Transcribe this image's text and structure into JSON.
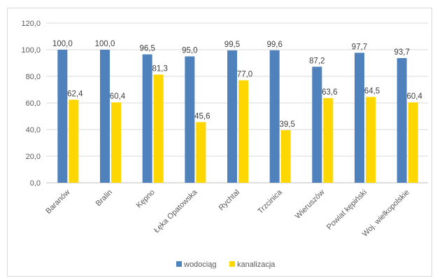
{
  "chart_data": {
    "type": "bar",
    "categories": [
      "Baranów",
      "Bralin",
      "Kępno",
      "Łęka Opatowska",
      "Rychtal",
      "Trzcinica",
      "Wieruszów",
      "Powiat kępiński",
      "Woj. wielkopolskie"
    ],
    "series": [
      {
        "name": "wodociąg",
        "color": "#4f81bd",
        "values": [
          100.0,
          100.0,
          96.5,
          95.0,
          99.5,
          99.6,
          87.2,
          97.7,
          93.7
        ],
        "labels": [
          "100,0",
          "100,0",
          "96,5",
          "95,0",
          "99,5",
          "99,6",
          "87,2",
          "97,7",
          "93,7"
        ]
      },
      {
        "name": "kanalizacja",
        "color": "#ffd700",
        "values": [
          62.4,
          60.4,
          81.3,
          45.6,
          77.0,
          39.5,
          63.6,
          64.5,
          60.4
        ],
        "labels": [
          "62,4",
          "60,4",
          "81,3",
          "45,6",
          "77,0",
          "39,5",
          "63,6",
          "64,5",
          "60,4"
        ]
      }
    ],
    "ylim": [
      0,
      120
    ],
    "yticks": [
      0,
      20,
      40,
      60,
      80,
      100,
      120
    ],
    "ytick_labels": [
      "0,0",
      "20,0",
      "40,0",
      "60,0",
      "80,0",
      "100,0",
      "120,0"
    ],
    "grid": "horizontal",
    "legend_position": "bottom",
    "title": "",
    "xlabel": "",
    "ylabel": ""
  }
}
